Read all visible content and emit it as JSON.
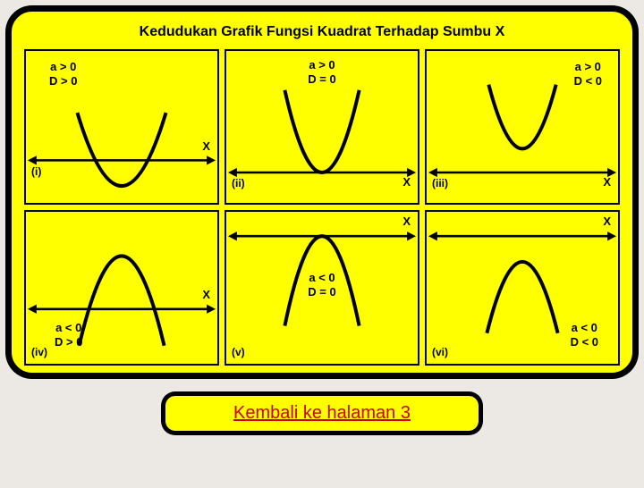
{
  "title": "Kedudukan Grafik Fungsi Kuadrat Terhadap Sumbu X",
  "link_label": "Kembali ke halaman 3",
  "colors": {
    "frame_bg": "#000000",
    "panel_bg": "#ffff00",
    "page_bg": "#ece8e4",
    "curve": "#000000",
    "link": "#cc0000"
  },
  "cells": [
    {
      "id": "i",
      "roman": "(i)",
      "cond_line1": "a > 0",
      "cond_line2": "D > 0",
      "orientation": "up",
      "intersects": 2,
      "axis_y_frac": 0.72,
      "cond_pos": "top-left",
      "roman_pos": "axis-left",
      "x_pos": "above-axis-right"
    },
    {
      "id": "ii",
      "roman": "(ii)",
      "cond_line1": "a > 0",
      "cond_line2": "D = 0",
      "orientation": "up",
      "intersects": 1,
      "axis_y_frac": 0.8,
      "cond_pos": "top-center",
      "roman_pos": "axis-left",
      "x_pos": "axis-right"
    },
    {
      "id": "iii",
      "roman": "(iii)",
      "cond_line1": "a > 0",
      "cond_line2": "D < 0",
      "orientation": "up",
      "intersects": 0,
      "axis_y_frac": 0.8,
      "cond_pos": "top-right",
      "roman_pos": "axis-left",
      "x_pos": "axis-right"
    },
    {
      "id": "iv",
      "roman": "(iv)",
      "cond_line1": "a < 0",
      "cond_line2": "D > 0",
      "orientation": "down",
      "intersects": 2,
      "axis_y_frac": 0.64,
      "cond_pos": "bottom-left",
      "roman_pos": "bottom-left",
      "x_pos": "above-axis-right"
    },
    {
      "id": "v",
      "roman": "(v)",
      "cond_line1": "a < 0",
      "cond_line2": "D = 0",
      "orientation": "down",
      "intersects": 1,
      "axis_y_frac": 0.16,
      "cond_pos": "mid-center",
      "roman_pos": "bottom-left",
      "x_pos": "above-axis-right"
    },
    {
      "id": "vi",
      "roman": "(vi)",
      "cond_line1": "a < 0",
      "cond_line2": "D < 0",
      "orientation": "down",
      "intersects": 0,
      "axis_y_frac": 0.16,
      "cond_pos": "bottom-right",
      "roman_pos": "bottom-left",
      "x_pos": "above-axis-right"
    }
  ],
  "style": {
    "axis_stroke": 2.5,
    "curve_stroke": 4,
    "arrow_size": 8
  }
}
